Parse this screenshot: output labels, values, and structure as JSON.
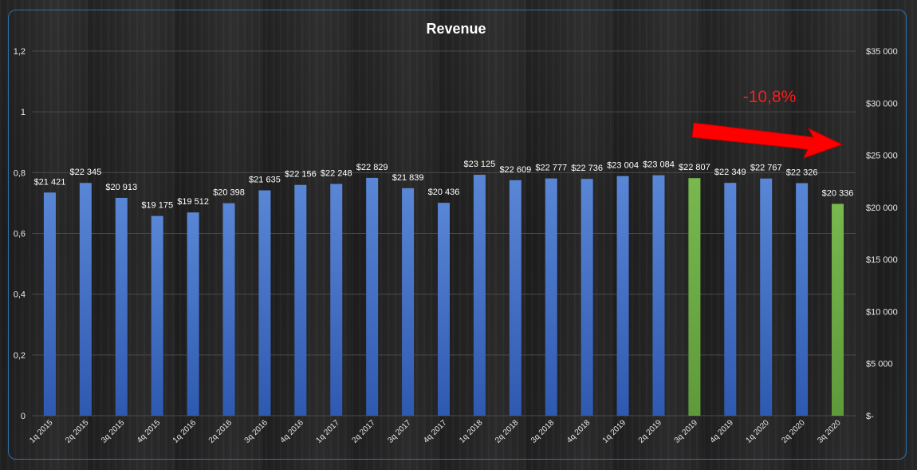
{
  "chart_data": {
    "type": "bar",
    "title": "Revenue",
    "categories": [
      "1q 2015",
      "2q 2015",
      "3q 2015",
      "4q 2015",
      "1q 2016",
      "2q 2016",
      "3q 2016",
      "4q 2016",
      "1q 2017",
      "2q 2017",
      "3q 2017",
      "4q 2017",
      "1q 2018",
      "2q 2018",
      "3q 2018",
      "4q 2018",
      "1q 2019",
      "2q 2019",
      "3q 2019",
      "4q 2019",
      "1q 2020",
      "2q 2020",
      "3q 2020"
    ],
    "values": [
      21421,
      22345,
      20913,
      19175,
      19512,
      20398,
      21635,
      22156,
      22248,
      22829,
      21839,
      20436,
      23125,
      22609,
      22777,
      22736,
      23004,
      23084,
      22807,
      22349,
      22767,
      22326,
      20336
    ],
    "data_labels": [
      "$21 421",
      "$22 345",
      "$20 913",
      "$19 175",
      "$19 512",
      "$20 398",
      "$21 635",
      "$22 156",
      "$22 248",
      "$22 829",
      "$21 839",
      "$20 436",
      "$23 125",
      "$22 609",
      "$22 777",
      "$22 736",
      "$23 004",
      "$23 084",
      "$22 807",
      "$22 349",
      "$22 767",
      "$22 326",
      "$20 336"
    ],
    "highlighted_categories": [
      "3q 2019",
      "3q 2020"
    ],
    "bar_color": "#4472c4",
    "highlight_color": "#70ad47",
    "y_left": {
      "ticks": [
        "0",
        "0,2",
        "0,4",
        "0,6",
        "0,8",
        "1",
        "1,2"
      ],
      "range": [
        0,
        1.2
      ]
    },
    "y_right": {
      "ticks": [
        "$-",
        "$5 000",
        "$10 000",
        "$15 000",
        "$20 000",
        "$25 000",
        "$30 000",
        "$35 000"
      ],
      "range": [
        0,
        35000
      ]
    },
    "grid": true,
    "legend": "none",
    "annotation": {
      "text": "-10,8%",
      "color": "#ff0000",
      "arrow": "red-arrow-icon"
    }
  }
}
